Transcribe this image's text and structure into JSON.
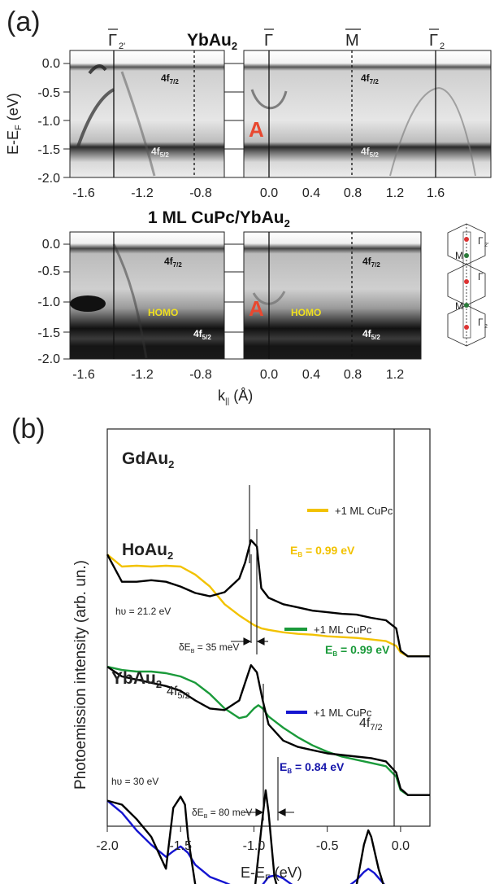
{
  "panel_a": {
    "label": "(a)",
    "title_top": "YbAu",
    "title_top_sub": "2",
    "title_bottom": "1 ML CuPc/YbAu",
    "title_bottom_sub": "2",
    "ylabel": "E-E",
    "ylabel_sub": "F",
    "ylabel_unit": " (eV)",
    "xlabel": "k",
    "xlabel_sub": "||",
    "xlabel_unit": " (Å)",
    "yticks": [
      "0.0",
      "-0.5",
      "-1.0",
      "-1.5",
      "-2.0"
    ],
    "xticks_left": [
      "-1.6",
      "-1.2",
      "-0.8"
    ],
    "xticks_left_bottom": [
      "-1.6",
      "-1.2",
      "-0.8"
    ],
    "xticks_right_top": [
      "0.0",
      "0.4",
      "0.8",
      "1.2",
      "1.6"
    ],
    "xticks_right_bottom": [
      "0.0",
      "0.4",
      "0.8",
      "1.2"
    ],
    "sym_gamma2p": "Γ",
    "sym_gamma2p_sub": "2'",
    "sym_gamma": "Γ",
    "sym_m": "M",
    "sym_gamma2": "Γ",
    "sym_gamma2_sub": "2",
    "lbl_4f": "4f",
    "lbl_72": "7/2",
    "lbl_52": "5/2",
    "lbl_A": "A",
    "lbl_homo": "HOMO",
    "bz_g2p": "Γ",
    "bz_g2p_sub": "2'",
    "bz_m": "M",
    "bz_g": "Γ",
    "bz_m2": "M",
    "bz_g2": "Γ",
    "bz_g2_sub": "2"
  },
  "chart_data": {
    "type": "line",
    "label": "(b)",
    "xlabel": "E-E",
    "xlabel_sub": "F",
    "xlabel_unit": " (eV)",
    "ylabel": "Photoemission intensity (arb. un.)",
    "xlim": [
      -2.0,
      0.2
    ],
    "xticks": [
      "-2.0",
      "-1.5",
      "-1.0",
      "-0.5",
      "0.0"
    ],
    "tick_values": [
      -2.0,
      -1.5,
      -1.0,
      -0.5,
      0.0
    ],
    "groups": [
      {
        "name": "GdAu",
        "name_sub": "2",
        "legend": "+1 ML CuPc",
        "color": "#f2c200",
        "eb_label": "E",
        "eb_sub": "B",
        "eb_value": " = 0.99 eV",
        "series": [
          {
            "name": "GdAu2",
            "color": "#000000",
            "x": [
              -2.0,
              -1.9,
              -1.8,
              -1.7,
              -1.6,
              -1.5,
              -1.4,
              -1.3,
              -1.2,
              -1.1,
              -1.06,
              -1.02,
              -0.98,
              -0.95,
              -0.9,
              -0.8,
              -0.7,
              -0.6,
              -0.5,
              -0.4,
              -0.3,
              -0.2,
              -0.1,
              -0.03,
              0.0,
              0.05,
              0.2
            ],
            "y": [
              118,
              152,
              152,
              150,
              152,
              158,
              166,
              170,
              165,
              148,
              128,
              100,
              108,
              160,
              172,
              180,
              184,
              188,
              190,
              192,
              193,
              197,
              200,
              210,
              238,
              245,
              245
            ]
          },
          {
            "name": "GdAu2 +1 ML CuPc",
            "color": "#f2c200",
            "x": [
              -2.0,
              -1.9,
              -1.8,
              -1.7,
              -1.6,
              -1.5,
              -1.4,
              -1.3,
              -1.2,
              -1.1,
              -1.0,
              -0.95,
              -0.9,
              -0.8,
              -0.7,
              -0.6,
              -0.5,
              -0.4,
              -0.3,
              -0.2,
              -0.1,
              -0.03,
              0.0,
              0.05,
              0.2
            ],
            "y": [
              118,
              133,
              132,
              133,
              132,
              133,
              143,
              158,
              180,
              194,
              206,
              210,
              212,
              215,
              217,
              218,
              220,
              221,
              222,
              224,
              226,
              232,
              240,
              245,
              245
            ]
          }
        ]
      },
      {
        "name": "HoAu",
        "name_sub": "2",
        "legend": "+1 ML CuPc",
        "color": "#1a9a3a",
        "eb_label": "E",
        "eb_sub": "B",
        "eb_value": " = 0.99 eV",
        "hv": "hυ = 21.2 eV",
        "delta": "δE",
        "delta_sub": "B",
        "delta_value": " = 35 meV",
        "series": [
          {
            "name": "HoAu2",
            "color": "#000000",
            "x": [
              -2.0,
              -1.9,
              -1.8,
              -1.7,
              -1.6,
              -1.5,
              -1.4,
              -1.3,
              -1.2,
              -1.1,
              -1.06,
              -1.02,
              -0.98,
              -0.94,
              -0.9,
              -0.8,
              -0.7,
              -0.6,
              -0.5,
              -0.4,
              -0.3,
              -0.2,
              -0.1,
              -0.03,
              0.0,
              0.05,
              0.2
            ],
            "y": [
              258,
              270,
              274,
              278,
              282,
              288,
              300,
              310,
              312,
              300,
              278,
              256,
              265,
              300,
              330,
              350,
              358,
              362,
              366,
              368,
              370,
              372,
              376,
              390,
              410,
              418,
              418
            ]
          },
          {
            "name": "HoAu2 +1 ML CuPc",
            "color": "#1a9a3a",
            "x": [
              -2.0,
              -1.9,
              -1.8,
              -1.7,
              -1.6,
              -1.5,
              -1.4,
              -1.3,
              -1.2,
              -1.1,
              -1.05,
              -1.0,
              -0.97,
              -0.94,
              -0.9,
              -0.8,
              -0.7,
              -0.6,
              -0.5,
              -0.4,
              -0.3,
              -0.2,
              -0.1,
              -0.03,
              0.0,
              0.05,
              0.2
            ],
            "y": [
              258,
              262,
              264,
              264,
              266,
              270,
              278,
              292,
              310,
              322,
              320,
              310,
              306,
              310,
              320,
              334,
              346,
              356,
              364,
              370,
              374,
              378,
              382,
              395,
              412,
              418,
              418
            ]
          }
        ]
      },
      {
        "name": "YbAu",
        "name_sub": "2",
        "legend": "+1 ML CuPc",
        "color": "#1414d0",
        "eb_label": "E",
        "eb_sub": "B",
        "eb_value": " = 0.84 eV",
        "hv": "hυ = 30 eV",
        "delta": "δE",
        "delta_sub": "B",
        "delta_value": " = 80 meV",
        "peak_52": "4f",
        "peak_52_sub": "5/2",
        "peak_72": "4f",
        "peak_72_sub": "7/2",
        "series": [
          {
            "name": "YbAu2",
            "color": "#000000",
            "x": [
              -2.0,
              -1.9,
              -1.8,
              -1.7,
              -1.6,
              -1.55,
              -1.5,
              -1.47,
              -1.45,
              -1.4,
              -1.3,
              -1.2,
              -1.1,
              -1.0,
              -0.95,
              -0.92,
              -0.9,
              -0.86,
              -0.8,
              -0.7,
              -0.6,
              -0.5,
              -0.4,
              -0.3,
              -0.25,
              -0.22,
              -0.2,
              -0.15,
              -0.1,
              -0.05,
              0.0,
              0.2
            ],
            "y": [
              425,
              430,
              448,
              470,
              510,
              434,
              420,
              430,
              470,
              530,
              542,
              545,
              545,
              545,
              460,
              412,
              440,
              520,
              560,
              574,
              574,
              568,
              560,
              530,
              480,
              462,
              470,
              510,
              540,
              547,
              548,
              548
            ]
          },
          {
            "name": "YbAu2 +1 ML CuPc",
            "color": "#1414d0",
            "x": [
              -2.0,
              -1.9,
              -1.8,
              -1.7,
              -1.6,
              -1.55,
              -1.5,
              -1.45,
              -1.4,
              -1.3,
              -1.2,
              -1.1,
              -1.0,
              -0.95,
              -0.9,
              -0.85,
              -0.8,
              -0.7,
              -0.6,
              -0.5,
              -0.4,
              -0.3,
              -0.25,
              -0.22,
              -0.18,
              -0.1,
              -0.05,
              0.0,
              0.2
            ],
            "y": [
              425,
              440,
              462,
              480,
              495,
              488,
              482,
              490,
              505,
              520,
              527,
              535,
              540,
              532,
              520,
              518,
              522,
              535,
              540,
              542,
              538,
              524,
              514,
              510,
              515,
              532,
              545,
              548,
              548
            ]
          }
        ]
      }
    ]
  }
}
